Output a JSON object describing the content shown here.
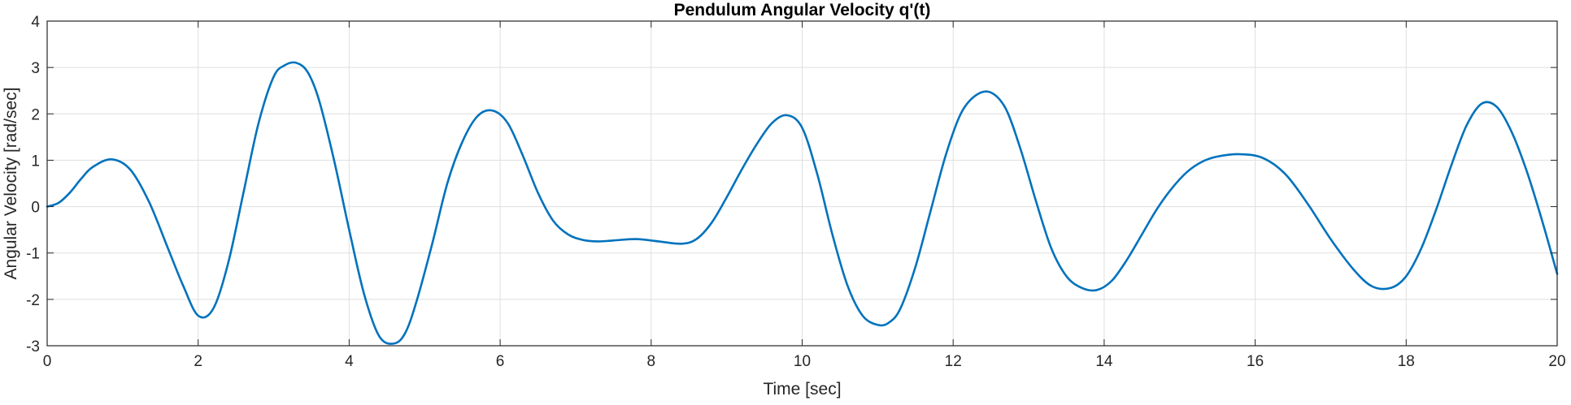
{
  "chart_data": {
    "type": "line",
    "title": "Pendulum Angular Velocity q'(t)",
    "xlabel": "Time [sec]",
    "ylabel": "Angular Velocity [rad/sec]",
    "xlim": [
      0,
      20
    ],
    "ylim": [
      -3,
      4
    ],
    "x_ticks": [
      0,
      2,
      4,
      6,
      8,
      10,
      12,
      14,
      16,
      18,
      20
    ],
    "y_ticks": [
      -3,
      -2,
      -1,
      0,
      1,
      2,
      3,
      4
    ],
    "grid": true,
    "legend": "none",
    "line_color": "#0072BD",
    "series": [
      {
        "x": [
          0,
          0.15,
          0.3,
          0.45,
          0.6,
          0.85,
          1.1,
          1.35,
          1.6,
          1.8,
          2.0,
          2.2,
          2.4,
          2.6,
          2.8,
          3.0,
          3.15,
          3.3,
          3.45,
          3.6,
          3.8,
          4.0,
          4.2,
          4.4,
          4.6,
          4.75,
          4.9,
          5.1,
          5.3,
          5.5,
          5.7,
          5.9,
          6.1,
          6.3,
          6.5,
          6.7,
          6.9,
          7.1,
          7.3,
          7.5,
          7.8,
          8.1,
          8.4,
          8.6,
          8.8,
          9.0,
          9.2,
          9.4,
          9.6,
          9.8,
          10.0,
          10.2,
          10.4,
          10.6,
          10.8,
          11.0,
          11.15,
          11.3,
          11.5,
          11.7,
          11.9,
          12.1,
          12.3,
          12.5,
          12.7,
          12.9,
          13.1,
          13.3,
          13.5,
          13.7,
          13.9,
          14.1,
          14.3,
          14.5,
          14.7,
          14.9,
          15.1,
          15.3,
          15.5,
          15.8,
          16.1,
          16.4,
          16.7,
          17.0,
          17.3,
          17.55,
          17.8,
          18.0,
          18.2,
          18.4,
          18.6,
          18.8,
          19.0,
          19.2,
          19.4,
          19.6,
          19.8,
          20.0
        ],
        "y": [
          0,
          0.08,
          0.3,
          0.6,
          0.85,
          1.02,
          0.8,
          0.1,
          -0.9,
          -1.7,
          -2.35,
          -2.2,
          -1.2,
          0.3,
          1.8,
          2.8,
          3.05,
          3.1,
          2.9,
          2.3,
          1.0,
          -0.5,
          -1.9,
          -2.8,
          -2.95,
          -2.7,
          -2.0,
          -0.8,
          0.5,
          1.4,
          1.95,
          2.07,
          1.8,
          1.1,
          0.3,
          -0.3,
          -0.6,
          -0.72,
          -0.75,
          -0.73,
          -0.7,
          -0.75,
          -0.8,
          -0.7,
          -0.35,
          0.2,
          0.8,
          1.35,
          1.8,
          1.97,
          1.7,
          0.7,
          -0.6,
          -1.7,
          -2.35,
          -2.55,
          -2.5,
          -2.2,
          -1.3,
          -0.1,
          1.1,
          2.0,
          2.4,
          2.46,
          2.1,
          1.2,
          0.1,
          -0.9,
          -1.5,
          -1.75,
          -1.8,
          -1.6,
          -1.15,
          -0.6,
          -0.05,
          0.4,
          0.75,
          0.97,
          1.08,
          1.13,
          1.05,
          0.7,
          0.05,
          -0.7,
          -1.35,
          -1.72,
          -1.75,
          -1.5,
          -0.9,
          -0.05,
          0.9,
          1.75,
          2.22,
          2.15,
          1.6,
          0.75,
          -0.3,
          -1.45
        ]
      }
    ]
  }
}
